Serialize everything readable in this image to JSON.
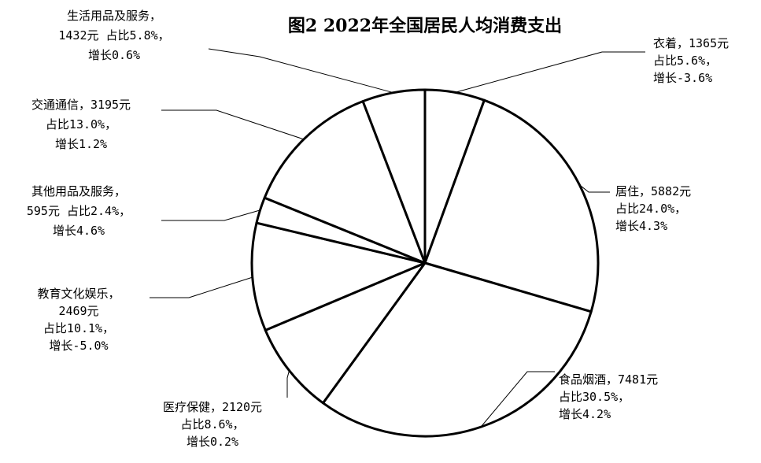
{
  "chart_data": {
    "type": "pie",
    "title": "图2 2022年全国居民人均消费支出",
    "unit": "元",
    "slices": [
      {
        "name": "衣着",
        "value": 1365,
        "share": 5.6,
        "growth": -3.6,
        "label_lines": [
          "衣着，1365元",
          "占比5.6%，",
          "增长-3.6%"
        ]
      },
      {
        "name": "居住",
        "value": 5882,
        "share": 24.0,
        "growth": 4.3,
        "label_lines": [
          "居住，5882元",
          "占比24.0%，",
          "增长4.3%"
        ]
      },
      {
        "name": "食品烟酒",
        "value": 7481,
        "share": 30.5,
        "growth": 4.2,
        "label_lines": [
          "食品烟酒，7481元",
          "占比30.5%，",
          "增长4.2%"
        ]
      },
      {
        "name": "医疗保健",
        "value": 2120,
        "share": 8.6,
        "growth": 0.2,
        "label_lines": [
          "医疗保健，2120元",
          "占比8.6%，",
          "增长0.2%"
        ]
      },
      {
        "name": "教育文化娱乐",
        "value": 2469,
        "share": 10.1,
        "growth": -5.0,
        "label_lines": [
          "教育文化娱乐，",
          "2469元",
          "占比10.1%，",
          "增长-5.0%"
        ]
      },
      {
        "name": "其他用品及服务",
        "value": 595,
        "share": 2.4,
        "growth": 4.6,
        "label_lines": [
          "其他用品及服务，",
          "595元 占比2.4%，",
          "增长4.6%"
        ]
      },
      {
        "name": "交通通信",
        "value": 3195,
        "share": 13.0,
        "growth": 1.2,
        "label_lines": [
          "交通通信，3195元",
          "占比13.0%，",
          "增长1.2%"
        ]
      },
      {
        "name": "生活用品及服务",
        "value": 1432,
        "share": 5.8,
        "growth": 0.6,
        "label_lines": [
          "生活用品及服务，",
          "1432元 占比5.8%，",
          "增长0.6%"
        ]
      }
    ],
    "legend": "none",
    "colors": {
      "fill": "#ffffff",
      "stroke": "#000000"
    }
  }
}
